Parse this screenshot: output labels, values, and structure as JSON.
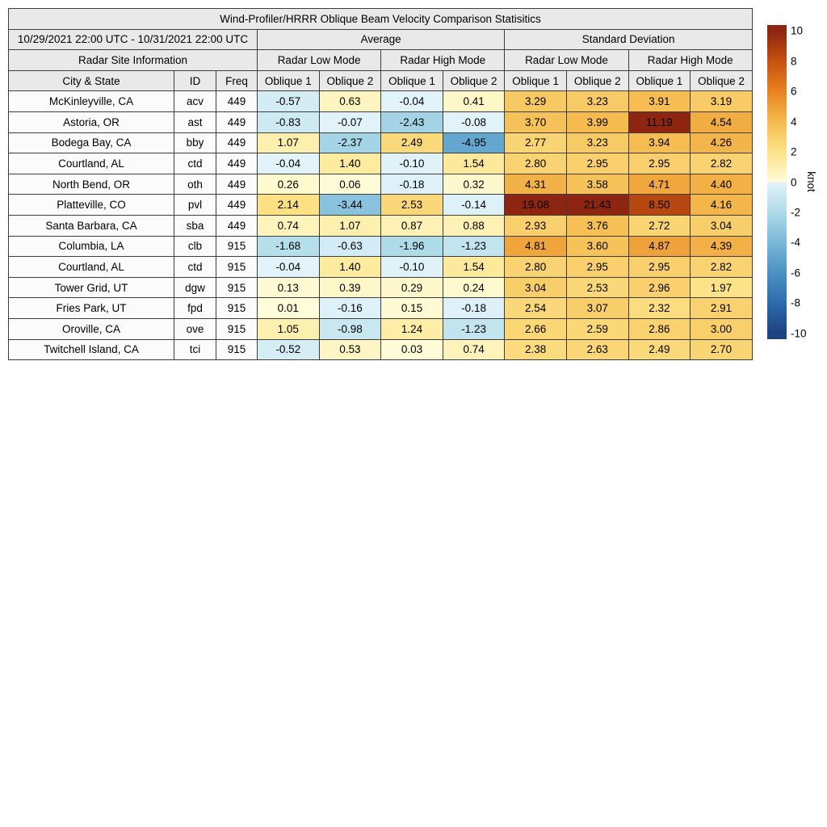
{
  "title": "Wind-Profiler/HRRR Oblique Beam Velocity Comparison Statisitics",
  "header": {
    "date_range": "10/29/2021 22:00 UTC - 10/31/2021 22:00 UTC",
    "site_info_label": "Radar Site Information",
    "group_average": "Average",
    "group_std": "Standard Deviation",
    "mode_labels": [
      "Radar Low Mode",
      "Radar High Mode",
      "Radar Low Mode",
      "Radar High Mode"
    ],
    "col_city": "City & State",
    "col_id": "ID",
    "col_freq": "Freq",
    "oblique_labels": [
      "Oblique 1",
      "Oblique 2",
      "Oblique 1",
      "Oblique 2",
      "Oblique 1",
      "Oblique 2",
      "Oblique 1",
      "Oblique 2"
    ]
  },
  "chart_data": {
    "type": "heatmap",
    "title": "Wind-Profiler/HRRR Oblique Beam Velocity Comparison Statisitics",
    "value_columns": [
      "Average Radar Low Mode Oblique 1",
      "Average Radar Low Mode Oblique 2",
      "Average Radar High Mode Oblique 1",
      "Average Radar High Mode Oblique 2",
      "Std Dev Radar Low Mode Oblique 1",
      "Std Dev Radar Low Mode Oblique 2",
      "Std Dev Radar High Mode Oblique 1",
      "Std Dev Radar High Mode Oblique 2"
    ],
    "rows": [
      {
        "city": "McKinleyville, CA",
        "id": "acv",
        "freq": "449",
        "values": [
          -0.57,
          0.63,
          -0.04,
          0.41,
          3.29,
          3.23,
          3.91,
          3.19
        ]
      },
      {
        "city": "Astoria, OR",
        "id": "ast",
        "freq": "449",
        "values": [
          -0.83,
          -0.07,
          -2.43,
          -0.08,
          3.7,
          3.99,
          11.19,
          4.54
        ]
      },
      {
        "city": "Bodega Bay, CA",
        "id": "bby",
        "freq": "449",
        "values": [
          1.07,
          -2.37,
          2.49,
          -4.95,
          2.77,
          3.23,
          3.94,
          4.26
        ]
      },
      {
        "city": "Courtland, AL",
        "id": "ctd",
        "freq": "449",
        "values": [
          -0.04,
          1.4,
          -0.1,
          1.54,
          2.8,
          2.95,
          2.95,
          2.82
        ]
      },
      {
        "city": "North Bend, OR",
        "id": "oth",
        "freq": "449",
        "values": [
          0.26,
          0.06,
          -0.18,
          0.32,
          4.31,
          3.58,
          4.71,
          4.4
        ]
      },
      {
        "city": "Platteville, CO",
        "id": "pvl",
        "freq": "449",
        "values": [
          2.14,
          -3.44,
          2.53,
          -0.14,
          19.08,
          21.43,
          8.5,
          4.16
        ]
      },
      {
        "city": "Santa Barbara, CA",
        "id": "sba",
        "freq": "449",
        "values": [
          0.74,
          1.07,
          0.87,
          0.88,
          2.93,
          3.76,
          2.72,
          3.04
        ]
      },
      {
        "city": "Columbia, LA",
        "id": "clb",
        "freq": "915",
        "values": [
          -1.68,
          -0.63,
          -1.96,
          -1.23,
          4.81,
          3.6,
          4.87,
          4.39
        ]
      },
      {
        "city": "Courtland, AL",
        "id": "ctd",
        "freq": "915",
        "values": [
          -0.04,
          1.4,
          -0.1,
          1.54,
          2.8,
          2.95,
          2.95,
          2.82
        ]
      },
      {
        "city": "Tower Grid, UT",
        "id": "dgw",
        "freq": "915",
        "values": [
          0.13,
          0.39,
          0.29,
          0.24,
          3.04,
          2.53,
          2.96,
          1.97
        ]
      },
      {
        "city": "Fries Park, UT",
        "id": "fpd",
        "freq": "915",
        "values": [
          0.01,
          -0.16,
          0.15,
          -0.18,
          2.54,
          3.07,
          2.32,
          2.91
        ]
      },
      {
        "city": "Oroville, CA",
        "id": "ove",
        "freq": "915",
        "values": [
          1.05,
          -0.98,
          1.24,
          -1.23,
          2.66,
          2.59,
          2.86,
          3.0
        ]
      },
      {
        "city": "Twitchell Island, CA",
        "id": "tci",
        "freq": "915",
        "values": [
          -0.52,
          0.53,
          0.03,
          0.74,
          2.38,
          2.63,
          2.49,
          2.7
        ]
      }
    ],
    "colorbar": {
      "unit": "knot",
      "vmin": -10,
      "vmax": 10,
      "ticks": [
        10,
        8,
        6,
        4,
        2,
        0,
        -2,
        -4,
        -6,
        -8,
        -10
      ],
      "warm_stops": [
        [
          0,
          "#fffcd9"
        ],
        [
          2,
          "#fce388"
        ],
        [
          4,
          "#f5bb4f"
        ],
        [
          6,
          "#e8821f"
        ],
        [
          8,
          "#c55211"
        ],
        [
          10,
          "#8d2510"
        ]
      ],
      "cool_stops": [
        [
          0,
          "#e3f3f9"
        ],
        [
          2,
          "#aedbe9"
        ],
        [
          4,
          "#79b8d8"
        ],
        [
          6,
          "#4a92c4"
        ],
        [
          8,
          "#2d6bad"
        ],
        [
          10,
          "#1d4380"
        ]
      ]
    },
    "colors": {
      "header_bg": "#e9e9e9",
      "row_bg": "#fbfbfb",
      "border": "#3d3d3d"
    }
  }
}
